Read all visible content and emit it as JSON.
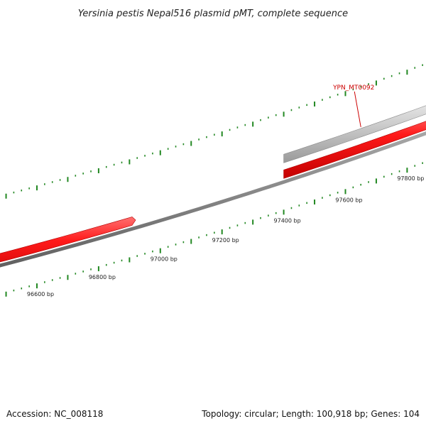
{
  "title": "Yersinia pestis Nepal516 plasmid pMT, complete sequence",
  "footer": {
    "accession": "Accession: NC_008118",
    "summary": "Topology: circular; Length: 100,918 bp; Genes: 104"
  },
  "genes": [
    {
      "id": "gene-forward-1",
      "label": "",
      "start_bp": 96180,
      "end_bp": 96920,
      "strand": "forward",
      "color": "#ff2020",
      "track": "forward"
    },
    {
      "id": "gene-forward-2",
      "label": "",
      "start_bp": 97400,
      "end_bp": 97965,
      "strand": "forward",
      "color": "#ff2020",
      "track": "forward"
    },
    {
      "id": "gene-ypn-mt0092",
      "label": "YPN_MT0092",
      "start_bp": 97400,
      "end_bp": 97965,
      "strand": "forward",
      "color": "#c8c8c8",
      "track": "outer",
      "label_bp": 97650
    }
  ],
  "scale": {
    "unit": "bp",
    "labels": [
      {
        "bp": 96600,
        "text": "96600 bp"
      },
      {
        "bp": 96800,
        "text": "96800 bp"
      },
      {
        "bp": 97000,
        "text": "97000 bp"
      },
      {
        "bp": 97200,
        "text": "97200 bp"
      },
      {
        "bp": 97400,
        "text": "97400 bp"
      },
      {
        "bp": 97600,
        "text": "97600 bp"
      },
      {
        "bp": 97800,
        "text": "97800 bp"
      }
    ],
    "tick_color": "#228822",
    "backbone_color": "#808080"
  }
}
